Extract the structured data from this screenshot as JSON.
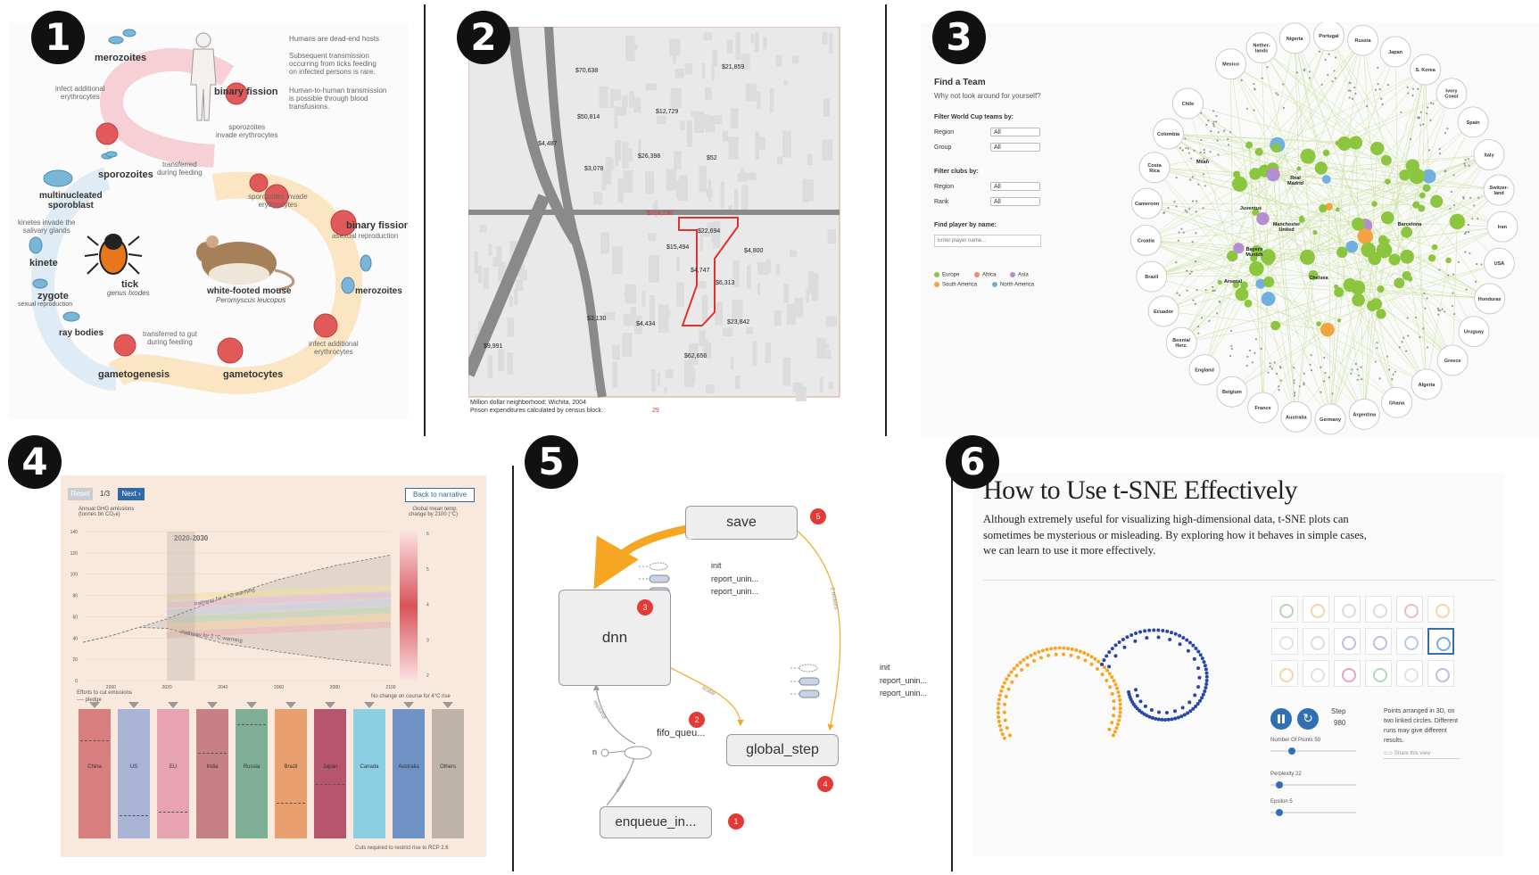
{
  "badges": [
    "1",
    "2",
    "3",
    "4",
    "5",
    "6"
  ],
  "panel1": {
    "labels": {
      "merozoites_top": "merozoites",
      "infect_top": "infect additional\nerythrocytes",
      "binary_fission_top": "binary fission",
      "humans_dead_end": "Humans are dead-end hosts",
      "subsequent": "Subsequent transmission\noccurring from ticks feeding\non infected persons is rare.",
      "human_to_human": "Human-to-human transmission\nis possible through blood\ntransfusions.",
      "sporozoites_invade_top": "sporozoites\ninvade erythrocytes",
      "sporozoites": "sporozoites",
      "transferred_feeding": "transferred\nduring feeding",
      "multinucleated": "multinucleated\nsporoblast",
      "sporozoites_invade_mid": "sporozoites invade\nerythrocytes",
      "kinetes_invade": "kinetes invade the\nsalivary glands",
      "binary_fission_right": "binary fission",
      "asexual": "asexual reproduction",
      "kinete": "kinete",
      "tick": "tick",
      "tick_genus": "genus Ixodes",
      "mouse": "white-footed mouse",
      "mouse_latin": "Peromyscus leucopus",
      "merozoites_right": "merozoites",
      "zygote": "zygote",
      "sexual": "sexual reproduction",
      "ray_bodies": "ray bodies",
      "transferred_gut": "transferred to gut\nduring feeding",
      "infect_bottom": "infect additional\nerythrocytes",
      "gametogenesis": "gametogenesis",
      "gametocytes": "gametocytes"
    }
  },
  "panel2": {
    "values": [
      "$70,638",
      "$21,859",
      "$50,814",
      "$12,729",
      "$4,487",
      "$26,398",
      "$52",
      "$3,078",
      "$318,290",
      "$22,694",
      "$15,494",
      "$4,800",
      "$4,747",
      "$6,313",
      "$3,130",
      "$4,434",
      "$23,842",
      "$9,991",
      "$62,656"
    ],
    "caption1": "Million dollar neighborhood: Wichita, 2004",
    "caption2": "Prison expenditures calculated by census block.",
    "page_number": "29"
  },
  "panel3": {
    "title": "Find a Team",
    "subtitle": "Why not look around for yourself?",
    "filter_wc": "Filter World Cup teams by:",
    "region": "Region",
    "group": "Group",
    "all": "All",
    "filter_clubs": "Filter clubs by:",
    "rank": "Rank",
    "find_player": "Find player by name:",
    "player_placeholder": "Enter player name...",
    "legend": [
      "Europe",
      "Africa",
      "Asia",
      "South America",
      "North America"
    ],
    "legend_colors": [
      "#8cc63f",
      "#f28b6c",
      "#b48ed1",
      "#f4a340",
      "#6fb0e0"
    ],
    "countries": [
      "Mexico",
      "Nether-\nlands",
      "Nigeria",
      "Portugal",
      "Russia",
      "Japan",
      "S. Korea",
      "Ivory\nCoast",
      "Spain",
      "Italy",
      "Switzer-\nland",
      "Iran",
      "USA",
      "Honduras",
      "Uruguay",
      "Greece",
      "Algeria",
      "Ghana",
      "Argentina",
      "Germany",
      "Australia",
      "France",
      "Belgium",
      "England",
      "Bosnia/\nHerz.",
      "Ecuador",
      "Brazil",
      "Croatia",
      "Cameroon",
      "Costa\nRica",
      "Colombia",
      "Chile"
    ],
    "clubs": [
      "Milan",
      "Juventus",
      "Real\nMadrid",
      "Manchester\nUnited",
      "Barcelona",
      "Bayern\nMunich",
      "Arsenal",
      "Chelsea"
    ]
  },
  "panel4": {
    "reset": "Reset",
    "page": "1/3",
    "next": "Next ›",
    "back": "Back to narrative",
    "left_axis_title": "Annual GHG emissions\n(tonnes bn CO₂e)",
    "right_axis_title": "Global mean temp.\nchange by 2100 (°C)",
    "period": "2020-2030",
    "path4": "Pathway for 4 °C warming",
    "path2": "Pathway for 2 °C warming",
    "efforts": "Efforts to cut emissions",
    "pledge": "---- pledge",
    "no_change": "No change on course for 4°C rise",
    "cuts_required": "Cuts required to restrict rise to RCP 2.6",
    "countries": [
      "China",
      "US",
      "EU",
      "India",
      "Russia",
      "Brazil",
      "Japan",
      "Canada",
      "Australia",
      "Others"
    ],
    "country_colors": [
      "#d97f7f",
      "#a9b3d6",
      "#e8a3b3",
      "#c77f86",
      "#7fae97",
      "#e9a06e",
      "#b7556e",
      "#8ccfe3",
      "#6f93c4",
      "#bdb3a8"
    ],
    "pledge_levels": [
      0.25,
      0.85,
      0.82,
      0.35,
      0.12,
      0.75,
      0.6,
      0.0,
      0.0,
      0.0
    ],
    "chart_data": {
      "type": "area",
      "x": [
        1990,
        2000,
        2010,
        2020,
        2030,
        2040,
        2060,
        2080,
        2100
      ],
      "ylim": [
        0,
        140
      ],
      "xlim": [
        1990,
        2100
      ],
      "yticks": [
        0,
        20,
        40,
        60,
        80,
        100,
        120,
        140
      ],
      "xticks": [
        2000,
        2020,
        2040,
        2060,
        2080,
        2100
      ],
      "right_ticks": [
        "6",
        "5",
        "4",
        "3",
        "2"
      ],
      "series": [
        {
          "name": "Pathway for 4 °C warming",
          "values": [
            36,
            42,
            50,
            58,
            68,
            78,
            95,
            108,
            118
          ]
        },
        {
          "name": "Pathway for 2 °C warming",
          "values": [
            36,
            42,
            50,
            49,
            42,
            35,
            27,
            20,
            14
          ]
        }
      ]
    }
  },
  "panel5": {
    "nodes": {
      "save": "save",
      "dnn": "dnn",
      "global_step": "global_step",
      "enqueue": "enqueue_in...",
      "fifo": "fifo_queu...",
      "n": "n",
      "init": "init",
      "report1": "report_unin...",
      "report2": "report_unin..."
    },
    "edges": {
      "tensors24": "24 tensors",
      "tensors2": "2 tensors",
      "scalar1": "scalar",
      "scalar2": "scalar",
      "edge_left": "resource"
    },
    "markers": [
      "5",
      "3",
      "2",
      "4",
      "1"
    ]
  },
  "panel6": {
    "title": "How to Use t-SNE Effectively",
    "intro": "Although extremely useful for visualizing high-dimensional data, t-SNE plots can sometimes be mysterious or misleading. By exploring how it behaves in simple cases, we can learn to use it more effectively.",
    "step_label": "Step",
    "step_value": "980",
    "description": "Points arranged in 3D, on two linked circles. Different runs may give different results.",
    "share": "Share this view",
    "points_label": "Number Of Points 50",
    "perplexity_label": "Perplexity 22",
    "epsilon_label": "Epsilon 5",
    "slider_values": {
      "points": 0.25,
      "perplexity": 0.1,
      "epsilon": 0.1
    },
    "accent": "#2f6fb5",
    "orange": "#f5a623",
    "blue": "#2846a8"
  }
}
